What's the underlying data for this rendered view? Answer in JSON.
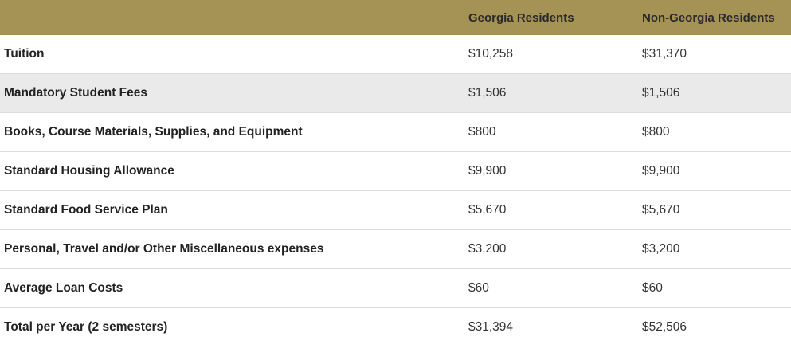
{
  "table": {
    "headers": [
      "",
      "Georgia Residents",
      "Non-Georgia Residents"
    ],
    "rows": [
      {
        "label": "Tuition",
        "georgia": "$10,258",
        "non_georgia": "$31,370"
      },
      {
        "label": "Mandatory Student Fees",
        "georgia": "$1,506",
        "non_georgia": "$1,506"
      },
      {
        "label": "Books, Course Materials, Supplies, and Equipment",
        "georgia": "$800",
        "non_georgia": "$800"
      },
      {
        "label": "Standard Housing Allowance",
        "georgia": "$9,900",
        "non_georgia": "$9,900"
      },
      {
        "label": "Standard Food Service Plan",
        "georgia": "$5,670",
        "non_georgia": "$5,670"
      },
      {
        "label": "Personal, Travel and/or Other Miscellaneous expenses",
        "georgia": "$3,200",
        "non_georgia": "$3,200"
      },
      {
        "label": "Average Loan Costs",
        "georgia": "$60",
        "non_georgia": "$60"
      },
      {
        "label": "Total per Year (2 semesters)",
        "georgia": "$31,394",
        "non_georgia": "$52,506"
      }
    ]
  },
  "colors": {
    "header_background": "#a59356",
    "shaded_row_background": "#eaeaea"
  }
}
